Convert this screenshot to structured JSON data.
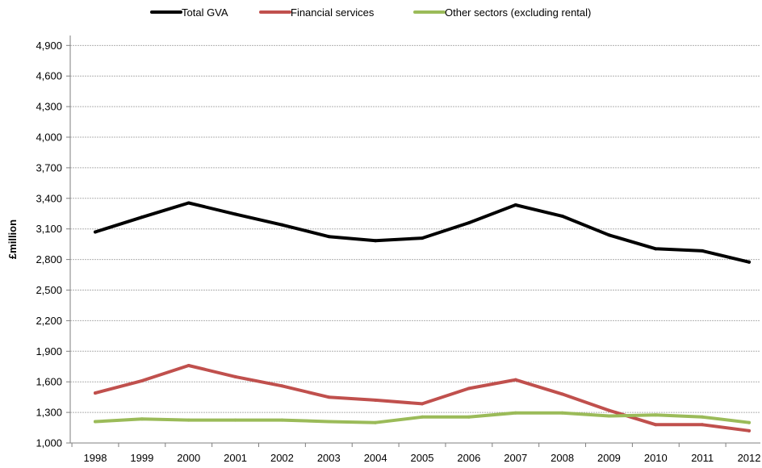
{
  "chart_data": {
    "type": "line",
    "title": "",
    "xlabel": "",
    "ylabel": "£million",
    "ylim": [
      1000,
      5000
    ],
    "y_ticks": [
      1000,
      1300,
      1600,
      1900,
      2200,
      2500,
      2800,
      3100,
      3400,
      3700,
      4000,
      4300,
      4600,
      4900
    ],
    "y_tick_labels": [
      "1,000",
      "1,300",
      "1,600",
      "1,900",
      "2,200",
      "2,500",
      "2,800",
      "3,100",
      "3,400",
      "3,700",
      "4,000",
      "4,300",
      "4,600",
      "4,900"
    ],
    "categories": [
      "1998",
      "1999",
      "2000",
      "2001",
      "2002",
      "2003",
      "2004",
      "2005",
      "2006",
      "2007",
      "2008",
      "2009",
      "2010",
      "2011",
      "2012"
    ],
    "grid": true,
    "legend_position": "top",
    "series": [
      {
        "name": "Total GVA",
        "color": "#000000",
        "values": [
          3070,
          3215,
          3355,
          3245,
          3140,
          3025,
          2985,
          3010,
          3160,
          3335,
          3225,
          3040,
          2905,
          2885,
          2775
        ]
      },
      {
        "name": "Financial services",
        "color": "#c0504d",
        "values": [
          1490,
          1610,
          1760,
          1650,
          1560,
          1450,
          1420,
          1385,
          1535,
          1620,
          1480,
          1320,
          1180,
          1180,
          1120
        ]
      },
      {
        "name": "Other sectors (excluding rental)",
        "color": "#9bbb59",
        "values": [
          1210,
          1235,
          1225,
          1225,
          1225,
          1210,
          1200,
          1255,
          1255,
          1295,
          1295,
          1265,
          1275,
          1255,
          1200
        ]
      }
    ]
  }
}
